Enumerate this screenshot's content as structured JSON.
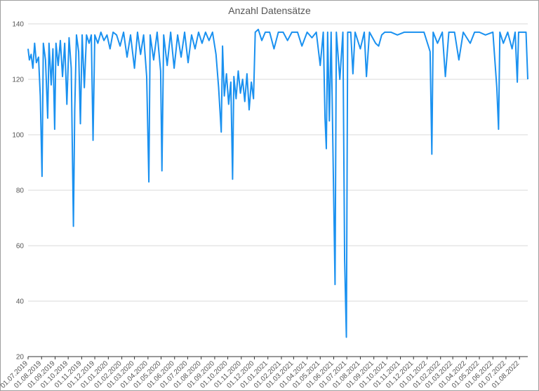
{
  "chart_data": {
    "type": "line",
    "title": "Anzahl Datensätze",
    "ylim": [
      20,
      140
    ],
    "yticks": [
      20,
      40,
      60,
      80,
      100,
      120,
      140
    ],
    "grid": true,
    "xlim": [
      "01.07.2019",
      "20.08.2022"
    ],
    "xticks": [
      "01.07.2019",
      "01.08.2019",
      "01.09.2019",
      "01.10.2019",
      "01.11.2019",
      "01.12.2019",
      "01.01.2020",
      "01.02.2020",
      "01.03.2020",
      "01.04.2020",
      "01.05.2020",
      "01.06.2020",
      "01.07.2020",
      "01.08.2020",
      "01.09.2020",
      "01.10.2020",
      "01.11.2020",
      "01.12.2020",
      "01.01.2021",
      "01.02.2021",
      "01.03.2021",
      "01.04.2021",
      "01.05.2021",
      "01.06.2021",
      "01.07.2021",
      "01.08.2021",
      "01.09.2021",
      "01.10.2021",
      "01.11.2021",
      "01.12.2021",
      "01.01.2022",
      "01.02.2022",
      "01.03.2022",
      "01.04.2022",
      "01.05.2022",
      "01.06.2022",
      "01.07.2022",
      "01.08.2022"
    ],
    "x": [
      "01.07.2019",
      "04.07.2019",
      "08.07.2019",
      "12.07.2019",
      "16.07.2019",
      "20.07.2019",
      "25.07.2019",
      "29.07.2019",
      "02.08.2019",
      "05.08.2019",
      "10.08.2019",
      "15.08.2019",
      "18.08.2019",
      "23.08.2019",
      "27.08.2019",
      "31.08.2019",
      "03.09.2019",
      "08.09.2019",
      "13.09.2019",
      "18.09.2019",
      "23.09.2019",
      "28.09.2019",
      "03.10.2019",
      "08.10.2019",
      "13.10.2019",
      "16.10.2019",
      "20.10.2019",
      "25.10.2019",
      "29.10.2019",
      "02.11.2019",
      "07.11.2019",
      "12.11.2019",
      "18.11.2019",
      "23.11.2019",
      "27.11.2019",
      "01.12.2019",
      "08.12.2019",
      "15.12.2019",
      "22.12.2019",
      "29.12.2019",
      "05.01.2020",
      "12.01.2020",
      "20.01.2020",
      "28.01.2020",
      "05.02.2020",
      "13.02.2020",
      "21.02.2020",
      "01.03.2020",
      "08.03.2020",
      "15.03.2020",
      "22.03.2020",
      "29.03.2020",
      "03.04.2020",
      "06.04.2020",
      "14.04.2020",
      "22.04.2020",
      "30.04.2020",
      "03.05.2020",
      "07.05.2020",
      "15.05.2020",
      "23.05.2020",
      "31.05.2020",
      "08.06.2020",
      "16.06.2020",
      "24.06.2020",
      "02.07.2020",
      "10.07.2020",
      "18.07.2020",
      "26.07.2020",
      "03.08.2020",
      "11.08.2020",
      "19.08.2020",
      "27.08.2020",
      "04.09.2020",
      "10.09.2020",
      "16.09.2020",
      "19.09.2020",
      "23.09.2020",
      "28.09.2020",
      "03.10.2020",
      "08.10.2020",
      "12.10.2020",
      "15.10.2020",
      "20.10.2020",
      "25.10.2020",
      "30.10.2020",
      "04.11.2020",
      "09.11.2020",
      "14.11.2020",
      "19.11.2020",
      "24.11.2020",
      "29.11.2020",
      "03.12.2020",
      "10.12.2020",
      "18.12.2020",
      "26.12.2020",
      "05.01.2021",
      "15.01.2021",
      "25.01.2021",
      "05.02.2021",
      "15.02.2021",
      "25.02.2021",
      "10.03.2021",
      "20.03.2021",
      "01.04.2021",
      "12.04.2021",
      "22.04.2021",
      "01.05.2021",
      "08.05.2021",
      "12.05.2021",
      "15.05.2021",
      "18.05.2021",
      "22.05.2021",
      "26.05.2021",
      "04.06.2021",
      "07.06.2021",
      "15.06.2021",
      "22.06.2021",
      "26.06.2021",
      "30.06.2021",
      "03.07.2021",
      "10.07.2021",
      "15.07.2021",
      "20.07.2021",
      "01.08.2021",
      "10.08.2021",
      "15.08.2021",
      "22.08.2021",
      "05.09.2021",
      "12.09.2021",
      "19.09.2021",
      "26.09.2021",
      "10.10.2021",
      "25.10.2021",
      "10.11.2021",
      "25.11.2021",
      "10.12.2021",
      "25.12.2021",
      "08.01.2022",
      "12.01.2022",
      "15.01.2022",
      "25.01.2022",
      "05.02.2022",
      "12.02.2022",
      "20.02.2022",
      "05.03.2022",
      "15.03.2022",
      "25.03.2022",
      "10.04.2022",
      "20.04.2022",
      "01.05.2022",
      "15.05.2022",
      "01.06.2022",
      "10.06.2022",
      "14.06.2022",
      "17.06.2022",
      "25.06.2022",
      "05.07.2022",
      "15.07.2022",
      "22.07.2022",
      "27.07.2022",
      "30.07.2022",
      "10.08.2022",
      "16.08.2022",
      "20.08.2022"
    ],
    "series": [
      {
        "color": "#1a91f0",
        "values": [
          131,
          127,
          129,
          124,
          133,
          126,
          128,
          114,
          85,
          133,
          127,
          106,
          133,
          118,
          131,
          102,
          133,
          125,
          134,
          121,
          133,
          111,
          135,
          124,
          67,
          109,
          136,
          130,
          104,
          136,
          117,
          136,
          133,
          136,
          98,
          136,
          133,
          137,
          134,
          136,
          131,
          137,
          136,
          132,
          137,
          128,
          136,
          124,
          137,
          129,
          136,
          121,
          83,
          136,
          127,
          137,
          123,
          87,
          136,
          125,
          137,
          124,
          136,
          128,
          137,
          126,
          136,
          131,
          137,
          133,
          137,
          134,
          137,
          129,
          117,
          101,
          132,
          114,
          122,
          111,
          119,
          84,
          121,
          113,
          123,
          115,
          120,
          112,
          122,
          109,
          119,
          113,
          137,
          138,
          134,
          137,
          137,
          131,
          137,
          137,
          134,
          137,
          137,
          132,
          137,
          135,
          137,
          125,
          137,
          106,
          95,
          137,
          105,
          137,
          46,
          137,
          120,
          137,
          55,
          27,
          137,
          137,
          122,
          137,
          131,
          137,
          121,
          137,
          133,
          132,
          136,
          137,
          137,
          136,
          137,
          137,
          137,
          137,
          130,
          93,
          137,
          133,
          137,
          121,
          137,
          137,
          127,
          137,
          133,
          137,
          137,
          136,
          137,
          117,
          102,
          137,
          133,
          137,
          131,
          137,
          119,
          137,
          137,
          137,
          120
        ]
      }
    ]
  }
}
